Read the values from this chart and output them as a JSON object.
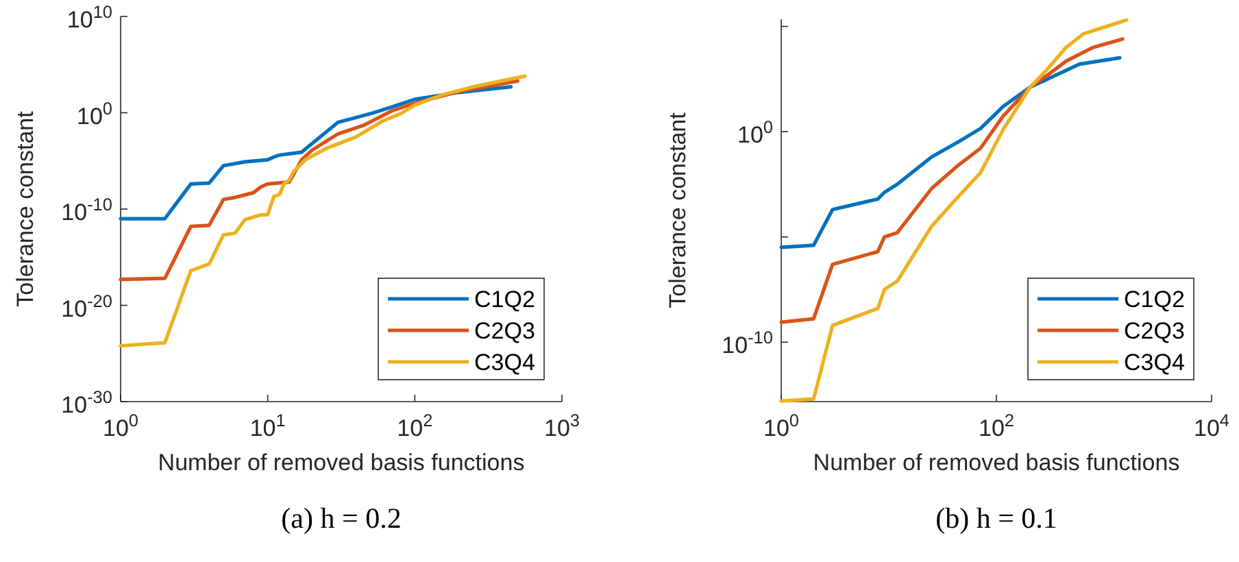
{
  "chart_data": [
    {
      "type": "line",
      "xlabel": "Number of removed basis functions",
      "ylabel": "Tolerance constant",
      "log": "xy",
      "xlim": [
        1,
        1000
      ],
      "ylim": [
        1e-30,
        10000000000.0
      ],
      "xticks": [
        {
          "value": 1,
          "label": "10$^{0}$"
        },
        {
          "value": 10,
          "label": "10$^{1}$"
        },
        {
          "value": 100,
          "label": "10$^{2}$"
        },
        {
          "value": 1000,
          "label": "10$^{3}$"
        }
      ],
      "yticks": [
        {
          "value": 1e-30,
          "label": "10$^{-30}$"
        },
        {
          "value": 1e-20,
          "label": "10$^{-20}$"
        },
        {
          "value": 1e-10,
          "label": "10$^{-10}$"
        },
        {
          "value": 1,
          "label": "10$^{0}$"
        },
        {
          "value": 10000000000.0,
          "label": "10$^{10}$"
        }
      ],
      "legend": "bottom right",
      "grid": false,
      "marker": "none",
      "line_style": "solid",
      "annotations": [
        "(a) h = 0.2"
      ],
      "series": [
        {
          "name": "C1Q2",
          "color": "#0072bd",
          "x": [
            1,
            2,
            3,
            4,
            5,
            7,
            10,
            11,
            12,
            17,
            20,
            25,
            30,
            50,
            70,
            100,
            200,
            450
          ],
          "values": [
            1e-11,
            1e-11,
            4e-08,
            5e-08,
            3.2e-06,
            8e-06,
            1.3e-05,
            2.5e-05,
            4e-05,
            8e-05,
            0.00063,
            0.01,
            0.1,
            0.8,
            4,
            25,
            130,
            500
          ]
        },
        {
          "name": "C2Q3",
          "color": "#d95319",
          "x": [
            1,
            2,
            3,
            4,
            5,
            6,
            8,
            9,
            10,
            14,
            17,
            20,
            30,
            45,
            70,
            100,
            200,
            500
          ],
          "values": [
            5e-18,
            6.3e-18,
            1.6e-12,
            2e-12,
            1e-09,
            1.6e-09,
            5e-09,
            2e-08,
            4e-08,
            6.3e-08,
            1.3e-05,
            0.00013,
            0.0063,
            0.05,
            1.6,
            10,
            160,
            2000
          ]
        },
        {
          "name": "C3Q4",
          "color": "#edb120",
          "x": [
            1,
            2,
            3,
            4,
            5,
            6,
            7,
            9,
            10,
            11,
            12,
            13,
            14,
            15,
            18,
            25,
            40,
            60,
            80,
            100,
            150,
            250,
            560
          ],
          "values": [
            6.3e-25,
            1.3e-24,
            4e-17,
            2e-16,
            2e-13,
            3.2e-13,
            8e-12,
            2.5e-11,
            2.5e-11,
            2e-09,
            3.2e-09,
            5e-08,
            1e-07,
            8e-07,
            1.3e-05,
            0.0002,
            0.0032,
            0.13,
            0.8,
            6.3,
            63,
            500,
            6300
          ]
        }
      ]
    },
    {
      "type": "line",
      "xlabel": "Number of removed basis functions",
      "ylabel": "Tolerance constant",
      "log": "xy",
      "xlim": [
        1,
        10000
      ],
      "ylim": [
        1.5e-13,
        220000.0
      ],
      "xticks": [
        {
          "value": 1,
          "label": "10$^{0}$"
        },
        {
          "value": 100,
          "label": "10$^{2}$"
        },
        {
          "value": 10000,
          "label": "10$^{4}$"
        }
      ],
      "yticks": [
        {
          "value": 1e-10,
          "label": "10$^{-10}$"
        },
        {
          "value": 1e-05,
          "label": null
        },
        {
          "value": 1,
          "label": "10$^{0}$"
        },
        {
          "value": 100000.0,
          "label": null
        }
      ],
      "legend": "bottom right",
      "grid": false,
      "marker": "none",
      "line_style": "solid",
      "annotations": [
        "(b) h = 0.1"
      ],
      "series": [
        {
          "name": "C1Q2",
          "color": "#0072bd",
          "x": [
            1,
            2,
            3,
            7.9,
            9.1,
            12,
            25,
            44,
            71,
            116,
            206,
            301,
            590,
            1400
          ],
          "values": [
            3.2e-06,
            4e-06,
            0.0002,
            0.00063,
            0.0013,
            0.0032,
            0.063,
            0.32,
            1.4,
            16,
            130,
            320,
            1600,
            3200
          ]
        },
        {
          "name": "C2Q3",
          "color": "#d95319",
          "x": [
            1,
            2,
            3,
            7.9,
            9.1,
            12,
            25,
            44,
            71,
            116,
            206,
            301,
            443,
            788,
            1490
          ],
          "values": [
            8.9e-10,
            1.3e-09,
            5e-07,
            2e-06,
            1e-05,
            1.6e-05,
            0.002,
            0.025,
            0.16,
            5.6,
            130,
            500,
            2200,
            10000.0,
            25000.0
          ]
        },
        {
          "name": "C3Q4",
          "color": "#edb120",
          "x": [
            1,
            2,
            3,
            7.9,
            9.1,
            12,
            25,
            44,
            71,
            116,
            206,
            301,
            443,
            648,
            1620
          ],
          "values": [
            1.6e-13,
            2e-13,
            6.3e-10,
            4e-09,
            3.2e-08,
            8e-08,
            3.2e-05,
            0.0008,
            0.011,
            1.3,
            130,
            1000,
            10000.0,
            45000.0,
            200000.0
          ]
        }
      ]
    }
  ]
}
